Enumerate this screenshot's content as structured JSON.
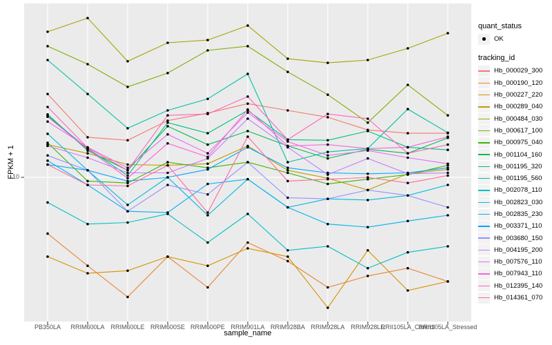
{
  "panel": {
    "background": "#EBEBEB",
    "gridline_color": "#FFFFFF",
    "tick_color": "#333333",
    "point_color": "#000000"
  },
  "legend": {
    "quant_status_title": "quant_status",
    "quant_status_items": [
      {
        "label": "OK",
        "marker": "point"
      }
    ],
    "tracking_title": "tracking_id"
  },
  "chart_data": {
    "type": "line",
    "title": "",
    "xlabel": "sample_name",
    "ylabel": "FPKM + 1",
    "y_scale": "log10",
    "grid": "major-only",
    "legend_position": "right",
    "y_axis_ticks": [
      {
        "value": 10,
        "label": "10"
      }
    ],
    "ylim_approx": [
      2,
      65
    ],
    "x_categories": [
      "PB350LA",
      "RRIM600LA",
      "RRIM600LE",
      "RRIM600SE",
      "RRIM600PE",
      "RRIM901LA",
      "RRIM928BA",
      "RRIM928LA",
      "RRIM928LE",
      "RRII105LA_Control",
      "RRII105LA_Stressed"
    ],
    "quant_status_all": "OK",
    "series": [
      {
        "tracking_id": "Hb_000029_300",
        "color": "#F8766D",
        "values": [
          24.9,
          15.5,
          15.0,
          18.6,
          20.2,
          22.4,
          20.8,
          19.3,
          16.8,
          16.2,
          16.2
        ]
      },
      {
        "tracking_id": "Hb_000190_120",
        "color": "#EA8331",
        "values": [
          5.4,
          3.8,
          2.7,
          4.2,
          3.0,
          4.9,
          4.0,
          3.0,
          3.4,
          3.7,
          3.2
        ]
      },
      {
        "tracking_id": "Hb_000227_220",
        "color": "#D89000",
        "values": [
          4.2,
          3.5,
          3.6,
          4.2,
          3.8,
          4.6,
          4.2,
          2.4,
          4.5,
          2.9,
          3.2
        ]
      },
      {
        "tracking_id": "Hb_000289_040",
        "color": "#C09B00",
        "values": [
          14.3,
          13.0,
          11.5,
          11.4,
          11.6,
          14.1,
          10.8,
          9.9,
          8.7,
          10.4,
          10.9
        ]
      },
      {
        "tracking_id": "Hb_000484_030",
        "color": "#A3A500",
        "values": [
          49.2,
          57.1,
          35.6,
          43.6,
          44.9,
          52.6,
          36.6,
          35.0,
          36.1,
          41.0,
          48.4
        ]
      },
      {
        "tracking_id": "Hb_000617_100",
        "color": "#7CAE00",
        "values": [
          42.0,
          34.5,
          26.9,
          31.3,
          40.1,
          42.0,
          31.7,
          24.7,
          18.2,
          27.5,
          19.7
        ]
      },
      {
        "tracking_id": "Hb_000975_040",
        "color": "#39B600",
        "values": [
          14.6,
          9.6,
          9.4,
          11.8,
          11.1,
          11.8,
          10.5,
          9.3,
          9.8,
          10.3,
          11.4
        ]
      },
      {
        "tracking_id": "Hb_001104_160",
        "color": "#00BB4E",
        "values": [
          19.9,
          13.4,
          10.8,
          17.5,
          14.3,
          16.6,
          14.1,
          12.3,
          13.6,
          13.0,
          15.4
        ]
      },
      {
        "tracking_id": "Hb_001195_320",
        "color": "#00BF7D",
        "values": [
          19.6,
          13.7,
          10.2,
          18.2,
          16.2,
          20.8,
          15.1,
          15.0,
          16.6,
          13.9,
          13.5
        ]
      },
      {
        "tracking_id": "Hb_001195_560",
        "color": "#00C1A3",
        "values": [
          36.1,
          24.9,
          17.1,
          20.8,
          23.6,
          31.0,
          11.8,
          13.2,
          13.7,
          21.1,
          16.3
        ]
      },
      {
        "tracking_id": "Hb_002078_110",
        "color": "#00BFC4",
        "values": [
          7.6,
          6.0,
          6.1,
          6.7,
          4.9,
          6.7,
          4.5,
          4.7,
          3.7,
          4.4,
          4.7
        ]
      },
      {
        "tracking_id": "Hb_002823_030",
        "color": "#00BAE0",
        "values": [
          16.1,
          10.8,
          7.4,
          10.0,
          6.6,
          9.8,
          7.2,
          7.9,
          7.8,
          8.2,
          9.2
        ]
      },
      {
        "tracking_id": "Hb_002835_230",
        "color": "#00B0F6",
        "values": [
          12.0,
          9.2,
          6.9,
          6.8,
          9.3,
          9.8,
          7.2,
          6.0,
          5.8,
          6.2,
          6.6
        ]
      },
      {
        "tracking_id": "Hb_003371_110",
        "color": "#00A5FF",
        "values": [
          11.5,
          10.8,
          9.6,
          10.0,
          10.9,
          13.9,
          11.1,
          10.5,
          10.4,
          10.5,
          11.1
        ]
      },
      {
        "tracking_id": "Hb_003680_150",
        "color": "#9590FF",
        "values": [
          12.7,
          10.8,
          6.9,
          9.2,
          8.3,
          11.8,
          8.0,
          7.9,
          8.7,
          8.2,
          7.2
        ]
      },
      {
        "tracking_id": "Hb_004195_200",
        "color": "#C77CFF",
        "values": [
          14.1,
          12.4,
          10.5,
          10.5,
          12.3,
          19.0,
          13.9,
          10.3,
          12.3,
          10.4,
          10.5
        ]
      },
      {
        "tracking_id": "Hb_007576_110",
        "color": "#E76BF3",
        "values": [
          18.4,
          13.9,
          11.1,
          16.0,
          13.0,
          20.3,
          14.8,
          12.7,
          13.4,
          12.4,
          11.6
        ]
      },
      {
        "tracking_id": "Hb_007943_110",
        "color": "#FA62DB",
        "values": [
          19.4,
          13.6,
          9.9,
          14.5,
          12.5,
          21.0,
          14.1,
          14.3,
          13.7,
          13.9,
          15.6
        ]
      },
      {
        "tracking_id": "Hb_012395_140",
        "color": "#FF62BC",
        "values": [
          21.6,
          13.8,
          10.8,
          19.7,
          20.0,
          24.2,
          15.1,
          20.0,
          19.0,
          13.0,
          14.3
        ]
      },
      {
        "tracking_id": "Hb_014361_070",
        "color": "#FF6A98",
        "values": [
          11.5,
          9.2,
          9.1,
          11.4,
          6.8,
          15.6,
          9.6,
          9.8,
          10.0,
          9.4,
          10.2
        ]
      }
    ]
  }
}
